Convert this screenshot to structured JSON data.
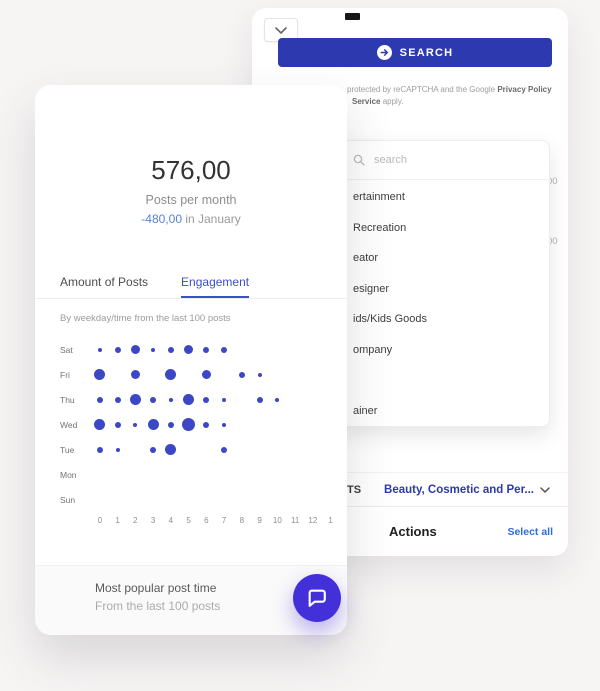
{
  "colors": {
    "background": "#f7f5f4",
    "primary": "#2d39ae",
    "dot": "#3b47c4",
    "tab_active": "#3a50c7",
    "delta_blue": "#5584d6",
    "link_blue": "#2e6ed8",
    "fab": "#4430d9"
  },
  "back_card": {
    "search_button": {
      "label": "SEARCH"
    },
    "recaptcha": {
      "line1_normal": "protected by reCAPTCHA and the Google ",
      "line1_link": "Privacy Policy",
      "line2_link": "Service",
      "line2_normal": " apply."
    },
    "clipped_counts": [
      "00",
      "00"
    ],
    "dropdown": {
      "search_placeholder": "search",
      "items": [
        "ertainment",
        "Recreation",
        "eator",
        "esigner",
        "ids/Kids Goods",
        "ompany",
        "",
        "ainer"
      ]
    },
    "filter_row": {
      "left_fragment": "TS",
      "selected_category": "Beauty, Cosmetic and Per..."
    },
    "actions_row": {
      "title": "Actions",
      "select_all": "Select all"
    }
  },
  "front_card": {
    "stat_value": "576,00",
    "stat_label": "Posts per month",
    "stat_delta": "-480,00",
    "stat_delta_suffix": " in January",
    "tabs": [
      {
        "label": "Amount of Posts",
        "active": false
      },
      {
        "label": "Engagement",
        "active": true
      }
    ],
    "footer": {
      "title": "Most popular post time",
      "subtitle": "From the last 100 posts"
    }
  },
  "chart_data": {
    "type": "scatter",
    "title": "By weekday/time from the last 100 posts",
    "x_labels": [
      "0",
      "1",
      "2",
      "3",
      "4",
      "5",
      "6",
      "7",
      "8",
      "9",
      "10",
      "11",
      "12",
      "1"
    ],
    "y_categories": [
      "Sat",
      "Fri",
      "Thu",
      "Wed",
      "Tue",
      "Mon",
      "Sun"
    ],
    "legend": "bubble size = relative number of posts (0-5 scale)",
    "series": [
      {
        "name": "Sat",
        "values": [
          1,
          2,
          3,
          1,
          2,
          3,
          2,
          2,
          0,
          0,
          0,
          0,
          0,
          0
        ]
      },
      {
        "name": "Fri",
        "values": [
          4,
          0,
          3,
          0,
          4,
          0,
          3,
          0,
          2,
          1,
          0,
          0,
          0,
          0
        ]
      },
      {
        "name": "Thu",
        "values": [
          2,
          2,
          4,
          2,
          1,
          4,
          2,
          1,
          0,
          2,
          1,
          0,
          0,
          0
        ]
      },
      {
        "name": "Wed",
        "values": [
          4,
          2,
          1,
          4,
          2,
          5,
          2,
          1,
          0,
          0,
          0,
          0,
          0,
          0
        ]
      },
      {
        "name": "Tue",
        "values": [
          2,
          1,
          0,
          2,
          4,
          0,
          0,
          2,
          0,
          0,
          0,
          0,
          0,
          0
        ]
      },
      {
        "name": "Mon",
        "values": [
          0,
          0,
          0,
          0,
          0,
          0,
          0,
          0,
          0,
          0,
          0,
          0,
          0,
          0
        ]
      },
      {
        "name": "Sun",
        "values": [
          0,
          0,
          0,
          0,
          0,
          0,
          0,
          0,
          0,
          0,
          0,
          0,
          0,
          0
        ]
      }
    ]
  }
}
